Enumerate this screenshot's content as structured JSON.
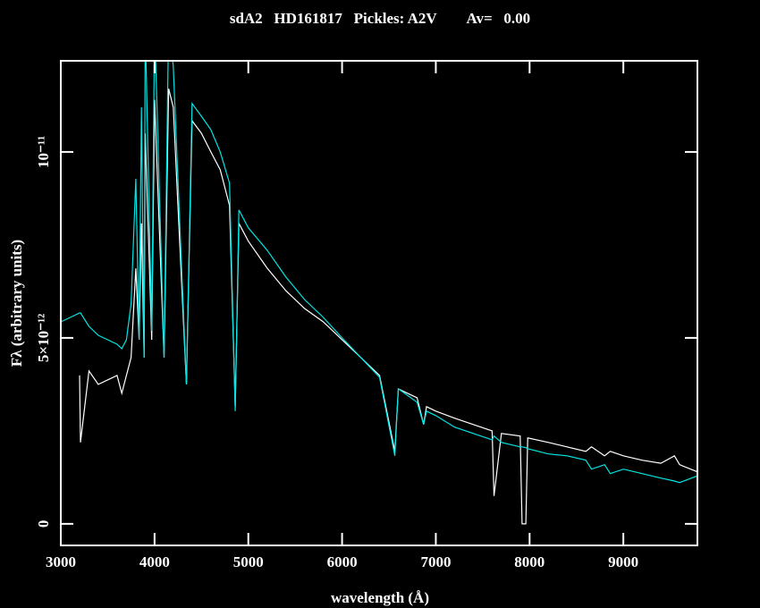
{
  "chart_data": {
    "type": "line",
    "title": "sdA2   HD161817   Pickles: A2V        Av=   0.00",
    "x_label": "wavelength (Å)",
    "y_label": "Fλ (arbitrary units)",
    "x": [
      3000,
      3100,
      3200,
      3210,
      3300,
      3400,
      3500,
      3600,
      3650,
      3700,
      3750,
      3800,
      3835,
      3860,
      3889,
      3900,
      3970,
      4000,
      4101,
      4150,
      4200,
      4340,
      4400,
      4500,
      4600,
      4700,
      4800,
      4861,
      4900,
      5000,
      5200,
      5400,
      5600,
      5800,
      6000,
      6200,
      6400,
      6563,
      6600,
      6800,
      6870,
      6900,
      7000,
      7200,
      7400,
      7600,
      7620,
      7700,
      7900,
      7920,
      7960,
      7980,
      8200,
      8400,
      8600,
      8660,
      8800,
      8860,
      9000,
      9200,
      9400,
      9545,
      9600,
      9800
    ],
    "series": [
      {
        "color": "#ffffff",
        "values": [
          null,
          null,
          3.99e-12,
          2.19e-12,
          4.11e-12,
          3.75e-12,
          3.87e-12,
          3.99e-12,
          3.51e-12,
          3.99e-12,
          4.47e-12,
          6.87e-12,
          4.95e-12,
          8.08e-12,
          4.47e-12,
          1.05e-11,
          4.95e-12,
          1.14e-11,
          4.47e-12,
          1.17e-11,
          1.12e-11,
          3.75e-12,
          1.084e-11,
          1.05e-11,
          1e-11,
          9.52e-12,
          8.56e-12,
          3.15e-12,
          8.08e-12,
          7.6e-12,
          6.88e-12,
          6.27e-12,
          5.79e-12,
          5.43e-12,
          4.95e-12,
          4.47e-12,
          3.99e-12,
          1.95e-12,
          3.63e-12,
          3.39e-12,
          2.67e-12,
          3.15e-12,
          3.03e-12,
          2.84e-12,
          2.67e-12,
          2.5e-12,
          7.5e-13,
          2.43e-12,
          2.36e-12,
          0,
          0,
          2.31e-12,
          2.19e-12,
          2.07e-12,
          1.95e-12,
          2.07e-12,
          1.83e-12,
          1.95e-12,
          1.83e-12,
          1.71e-12,
          1.63e-12,
          1.83e-12,
          1.59e-12,
          1.39e-12
        ]
      },
      {
        "color": "#00e5e5",
        "values": [
          5.43e-12,
          5.55e-12,
          5.67e-12,
          5.67e-12,
          5.31e-12,
          5.07e-12,
          4.95e-12,
          4.83e-12,
          4.71e-12,
          4.95e-12,
          5.91e-12,
          9.28e-12,
          4.95e-12,
          1.12e-11,
          4.47e-12,
          1.35e-11,
          5.19e-12,
          1.35e-11,
          4.47e-12,
          1.35e-11,
          1.23e-11,
          3.75e-12,
          1.13e-11,
          1.096e-11,
          1.06e-11,
          1e-11,
          9.16e-12,
          3.03e-12,
          8.44e-12,
          7.96e-12,
          7.36e-12,
          6.64e-12,
          6.03e-12,
          5.55e-12,
          5e-12,
          4.47e-12,
          3.94e-12,
          1.83e-12,
          3.63e-12,
          3.27e-12,
          2.67e-12,
          3.03e-12,
          2.91e-12,
          2.6e-12,
          2.43e-12,
          2.26e-12,
          2.36e-12,
          2.19e-12,
          2.07e-12,
          2.07e-12,
          2.05e-12,
          2.02e-12,
          1.88e-12,
          1.83e-12,
          1.71e-12,
          1.47e-12,
          1.59e-12,
          1.35e-12,
          1.47e-12,
          1.35e-12,
          1.23e-12,
          1.15e-12,
          1.11e-12,
          1.3e-12
        ]
      }
    ],
    "xlim": [
      3000,
      9790
    ],
    "xticks": [
      3000,
      4000,
      5000,
      6000,
      7000,
      8000,
      9000
    ],
    "ylim": [
      -5.8e-13,
      1.245e-11
    ],
    "yticks": [
      0,
      {
        "value": 5e-12,
        "label": "5×10⁻¹²"
      },
      {
        "value": 1e-11,
        "label": "10⁻¹¹"
      }
    ]
  }
}
